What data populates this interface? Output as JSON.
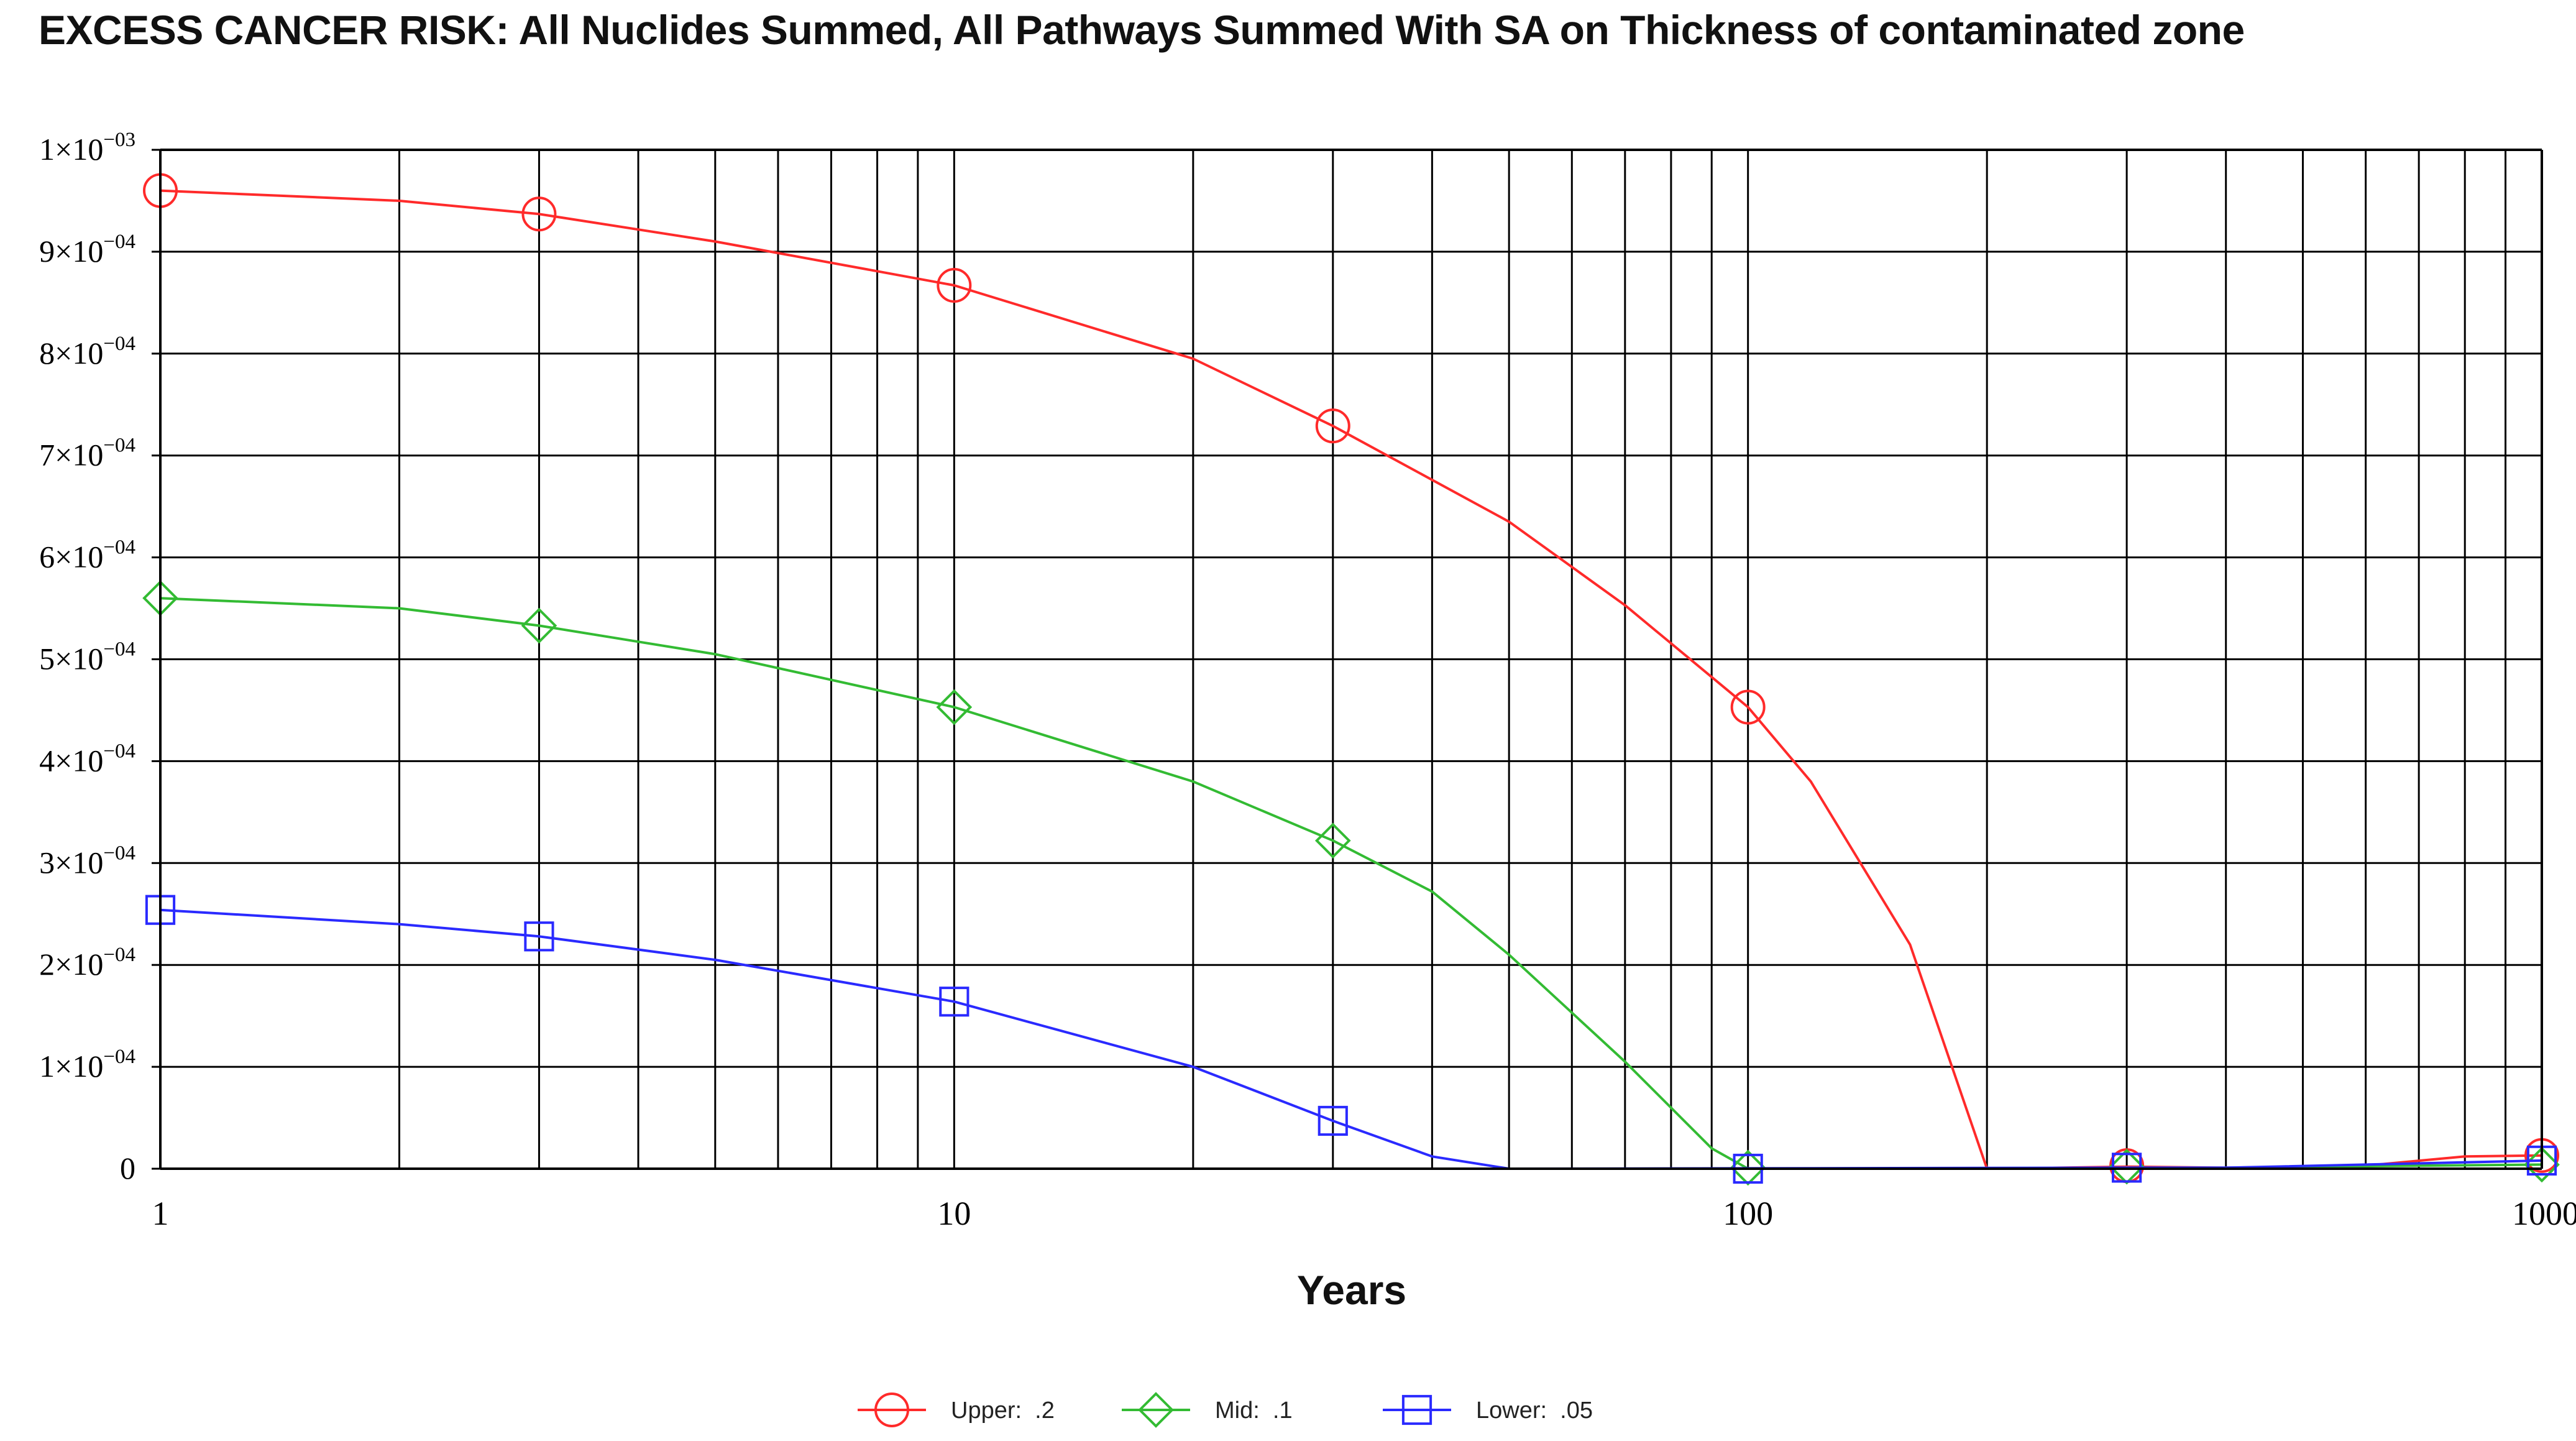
{
  "chart_data": {
    "type": "line",
    "title": "EXCESS CANCER RISK: All Nuclides Summed, All Pathways Summed With SA on Thickness of contaminated zone",
    "xlabel": "Years",
    "ylabel": "",
    "x_scale": "log",
    "xlim": [
      1,
      1000
    ],
    "ylim": [
      0,
      0.001
    ],
    "grid": true,
    "legend_position": "bottom",
    "x_ticks": [
      {
        "value": 1,
        "label": "1"
      },
      {
        "value": 10,
        "label": "10"
      },
      {
        "value": 100,
        "label": "100"
      },
      {
        "value": 1000,
        "label": "1000"
      }
    ],
    "y_ticks": [
      {
        "value": 0,
        "mantissa": "0",
        "exponent": ""
      },
      {
        "value": 0.0001,
        "mantissa": "1×10",
        "exponent": "−04"
      },
      {
        "value": 0.0002,
        "mantissa": "2×10",
        "exponent": "−04"
      },
      {
        "value": 0.0003,
        "mantissa": "3×10",
        "exponent": "−04"
      },
      {
        "value": 0.0004,
        "mantissa": "4×10",
        "exponent": "−04"
      },
      {
        "value": 0.0005,
        "mantissa": "5×10",
        "exponent": "−04"
      },
      {
        "value": 0.0006,
        "mantissa": "6×10",
        "exponent": "−04"
      },
      {
        "value": 0.0007,
        "mantissa": "7×10",
        "exponent": "−04"
      },
      {
        "value": 0.0008,
        "mantissa": "8×10",
        "exponent": "−04"
      },
      {
        "value": 0.0009,
        "mantissa": "9×10",
        "exponent": "−04"
      },
      {
        "value": 0.001,
        "mantissa": "1×10",
        "exponent": "−03"
      }
    ],
    "series": [
      {
        "name": "Upper:  .2",
        "color": "#ff2a2a",
        "marker": "circle",
        "line": [
          [
            1,
            0.00096
          ],
          [
            2,
            0.00095
          ],
          [
            3,
            0.000937
          ],
          [
            5,
            0.00091
          ],
          [
            10,
            0.000867
          ],
          [
            20,
            0.000795
          ],
          [
            30,
            0.000729
          ],
          [
            50,
            0.000635
          ],
          [
            70,
            0.000553
          ],
          [
            100,
            0.000453
          ],
          [
            120,
            0.00038
          ],
          [
            160,
            0.00022
          ],
          [
            200,
            0.0
          ],
          [
            300,
            2e-06
          ],
          [
            400,
            1e-06
          ],
          [
            600,
            3e-06
          ],
          [
            800,
            1.2e-05
          ],
          [
            1000,
            1.3e-05
          ]
        ],
        "markers": [
          [
            1,
            0.00096
          ],
          [
            3,
            0.000937
          ],
          [
            10,
            0.000867
          ],
          [
            30,
            0.000729
          ],
          [
            100,
            0.000453
          ],
          [
            300,
            3e-06
          ],
          [
            1000,
            1.3e-05
          ]
        ]
      },
      {
        "name": "Mid:  .1",
        "color": "#33bb33",
        "marker": "diamond",
        "line": [
          [
            1,
            0.00056
          ],
          [
            2,
            0.00055
          ],
          [
            3,
            0.000533
          ],
          [
            5,
            0.000505
          ],
          [
            10,
            0.000453
          ],
          [
            20,
            0.00038
          ],
          [
            30,
            0.000322
          ],
          [
            40,
            0.000272
          ],
          [
            50,
            0.00021
          ],
          [
            70,
            0.000105
          ],
          [
            90,
            2e-05
          ],
          [
            100,
            0.0
          ],
          [
            300,
            1e-06
          ],
          [
            400,
            1e-06
          ],
          [
            700,
            3e-06
          ],
          [
            1000,
            4e-06
          ]
        ],
        "markers": [
          [
            1,
            0.00056
          ],
          [
            3,
            0.000533
          ],
          [
            10,
            0.000453
          ],
          [
            30,
            0.000322
          ],
          [
            100,
            1e-06
          ],
          [
            300,
            2e-06
          ],
          [
            1000,
            4e-06
          ]
        ]
      },
      {
        "name": "Lower:  .05",
        "color": "#2a2aff",
        "marker": "square",
        "line": [
          [
            1,
            0.000254
          ],
          [
            2,
            0.00024
          ],
          [
            3,
            0.000228
          ],
          [
            5,
            0.000205
          ],
          [
            10,
            0.000164
          ],
          [
            20,
            0.0001
          ],
          [
            30,
            4.7e-05
          ],
          [
            40,
            1.2e-05
          ],
          [
            50,
            0.0
          ],
          [
            300,
            1e-06
          ],
          [
            400,
            1e-06
          ],
          [
            1000,
            8e-06
          ]
        ],
        "markers": [
          [
            1,
            0.000254
          ],
          [
            3,
            0.000228
          ],
          [
            10,
            0.000164
          ],
          [
            30,
            4.7e-05
          ],
          [
            100,
            0.0
          ],
          [
            300,
            1e-06
          ],
          [
            1000,
            8e-06
          ]
        ]
      }
    ]
  }
}
